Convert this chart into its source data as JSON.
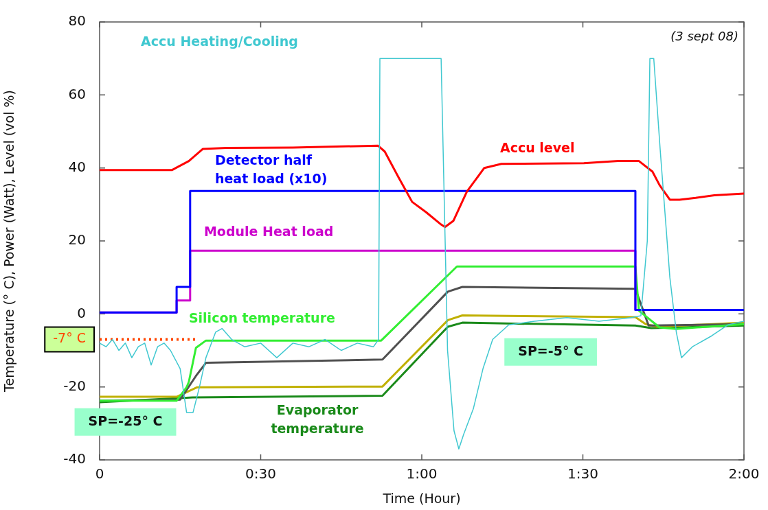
{
  "chart_data": {
    "type": "line",
    "xlabel": "Time (Hour)",
    "ylabel": "Temperature (° C), Power (Watt), Level (vol %)",
    "xlim": [
      0,
      2
    ],
    "xticks": [
      {
        "value": 0,
        "label": "0"
      },
      {
        "value": 0.5,
        "label": "0:30"
      },
      {
        "value": 1,
        "label": "1:00"
      },
      {
        "value": 1.5,
        "label": "1:30"
      },
      {
        "value": 2,
        "label": "2:00"
      }
    ],
    "ylim": [
      -40,
      80
    ],
    "yticks": [
      -40,
      -20,
      0,
      20,
      40,
      60,
      80
    ],
    "grid": false,
    "legend": false,
    "marker": "none",
    "annotations": [
      "(3 sept 08)",
      {
        "text": "-7° C",
        "x": 0,
        "y": -7
      },
      "SP=-25° C",
      "SP=-5° C"
    ],
    "series": [
      {
        "name": "Accu Heating/Cooling",
        "color": "#40c8d0",
        "x": [
          0,
          0.02,
          0.04,
          0.06,
          0.08,
          0.1,
          0.12,
          0.14,
          0.16,
          0.18,
          0.2,
          0.22,
          0.25,
          0.27,
          0.29,
          0.31,
          0.33,
          0.36,
          0.38,
          0.41,
          0.45,
          0.5,
          0.55,
          0.6,
          0.65,
          0.7,
          0.75,
          0.8,
          0.85,
          0.866,
          0.87,
          1.06,
          1.08,
          1.1,
          1.115,
          1.13,
          1.16,
          1.19,
          1.22,
          1.27,
          1.35,
          1.45,
          1.55,
          1.65,
          1.68,
          1.7,
          1.708,
          1.72,
          1.74,
          1.77,
          1.79,
          1.806,
          1.84,
          1.9,
          1.95,
          2.0
        ],
        "values": [
          -8,
          -9,
          -7,
          -10,
          -8,
          -12,
          -9,
          -8,
          -14,
          -9,
          -8,
          -10,
          -15,
          -27,
          -27,
          -20,
          -12,
          -5,
          -4,
          -7,
          -9,
          -8,
          -12,
          -8,
          -9,
          -7,
          -10,
          -8,
          -9,
          -7,
          70,
          70,
          -10,
          -32,
          -37,
          -33,
          -26,
          -15,
          -7,
          -3,
          -2,
          -1,
          -2,
          -1,
          -0.5,
          20,
          70,
          70,
          45,
          10,
          -5,
          -12,
          -9,
          -6,
          -3,
          -2
        ]
      },
      {
        "name": "Accu level",
        "color": "#ff0000",
        "x": [
          0,
          0.224,
          0.277,
          0.32,
          0.394,
          0.6,
          0.864,
          0.885,
          0.928,
          0.97,
          1.013,
          1.06,
          1.072,
          1.098,
          1.14,
          1.194,
          1.247,
          1.503,
          1.61,
          1.674,
          1.716,
          1.738,
          1.77,
          1.8,
          1.85,
          1.908,
          2.0
        ],
        "values": [
          39.4,
          39.4,
          41.9,
          45.2,
          45.5,
          45.6,
          46.1,
          44.5,
          37.4,
          30.7,
          27.9,
          24.5,
          23.8,
          25.5,
          33.5,
          40,
          41.1,
          41.3,
          41.9,
          41.9,
          39,
          35.3,
          31.3,
          31.3,
          31.8,
          32.5,
          33
        ]
      },
      {
        "name": "Detector half heat load (x10)",
        "type": "step",
        "color": "#0000ff",
        "x": [
          0,
          0.239,
          0.281,
          1.663,
          2.0
        ],
        "values": [
          0.4,
          7.4,
          33.7,
          1.1,
          1.1
        ]
      },
      {
        "name": "Module Heat load",
        "type": "step",
        "color": "#cc00cc",
        "x": [
          0,
          0.239,
          0.281,
          1.663,
          2.0
        ],
        "values": [
          0.4,
          3.7,
          17.3,
          1.1,
          1.1
        ]
      },
      {
        "name": "Silicon temperature",
        "color": "#33ee33",
        "x": [
          0,
          0.239,
          0.27,
          0.277,
          0.299,
          0.33,
          0.874,
          1.109,
          1.663,
          1.674,
          1.738,
          1.79,
          2.0
        ],
        "values": [
          -23.8,
          -23.8,
          -20.1,
          -18.6,
          -9.3,
          -7.3,
          -7.3,
          13,
          13,
          0.9,
          -3.7,
          -4.1,
          -2.8
        ]
      },
      {
        "color": "#505050",
        "x": [
          0,
          0.25,
          0.299,
          0.33,
          0.878,
          1.081,
          1.126,
          1.663,
          1.704,
          2.0
        ],
        "values": [
          -23.8,
          -23.5,
          -17,
          -13.4,
          -12.5,
          6.1,
          7.4,
          6.9,
          -3.2,
          -2.8
        ]
      },
      {
        "color": "#c0b000",
        "x": [
          0,
          0.239,
          0.303,
          0.878,
          1.081,
          1.126,
          1.663,
          1.695,
          1.731,
          2.0
        ],
        "values": [
          -22.7,
          -22.7,
          -20.1,
          -19.9,
          -1.7,
          -0.4,
          -0.9,
          -2.8,
          -3.5,
          -2.4
        ]
      },
      {
        "name": "Evaporator temperature",
        "color": "#1a8a1a",
        "x": [
          0,
          0.288,
          0.878,
          1.081,
          1.126,
          1.663,
          1.712,
          2.0
        ],
        "values": [
          -24.2,
          -22.9,
          -22.4,
          -3.5,
          -2.4,
          -3.2,
          -3.9,
          -3.2
        ]
      },
      {
        "color": "#ff4500",
        "line_style": "dotted",
        "x": [
          0,
          0.3
        ],
        "values": [
          -7,
          -7
        ]
      }
    ]
  }
}
